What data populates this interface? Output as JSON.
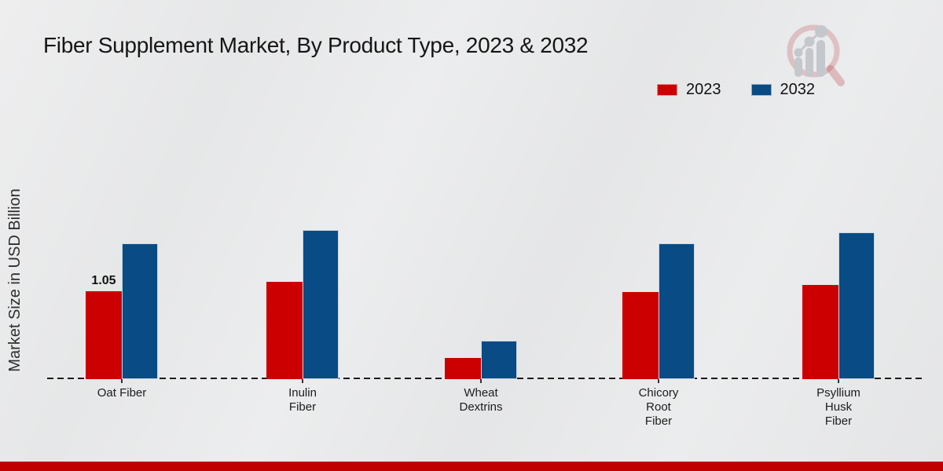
{
  "title": "Fiber Supplement Market, By Product Type, 2023 & 2032",
  "ylabel": "Market Size in USD Billion",
  "legend": {
    "items": [
      {
        "label": "2023",
        "color": "#cc0000"
      },
      {
        "label": "2032",
        "color": "#084b85"
      }
    ]
  },
  "accent_colors": {
    "series_2023_red": "#cc0000",
    "series_2032_blue": "#084b85",
    "footer_bar_red": "#c00000"
  },
  "icons": {
    "brand_logo": "magnifier-bar-chart-logo"
  },
  "chart_data": {
    "type": "bar",
    "title": "Fiber Supplement Market, By Product Type, 2023 & 2032",
    "xlabel": "",
    "ylabel": "Market Size in USD Billion",
    "categories": [
      "Oat Fiber",
      "Inulin\nFiber",
      "Wheat\nDextrins",
      "Chicory\nRoot\nFiber",
      "Psyllium\nHusk\nFiber"
    ],
    "series": [
      {
        "name": "2023",
        "color": "#cc0000",
        "values": [
          1.05,
          1.16,
          0.25,
          1.04,
          1.12
        ]
      },
      {
        "name": "2032",
        "color": "#084b85",
        "values": [
          1.62,
          1.78,
          0.46,
          1.62,
          1.75
        ]
      }
    ],
    "annotations": [
      {
        "series": "2023",
        "category_index": 0,
        "text": "1.05"
      }
    ],
    "ylim": [
      0,
      2
    ],
    "grid": false,
    "legend_position": "top-right",
    "x_axis_style": "dashed-baseline",
    "y_axis_ticks_visible": false
  }
}
